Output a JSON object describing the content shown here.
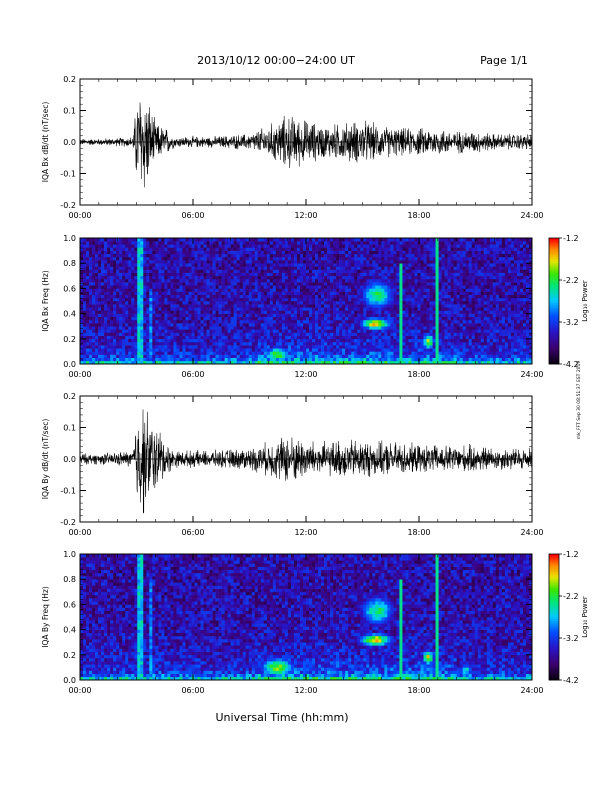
{
  "header": {
    "title": "2013/10/12  00:00−24:00 UT",
    "page": "Page 1/1"
  },
  "footer": {
    "xlabel": "Universal Time (hh:mm)",
    "side_note": "mk_FFT Sep 30 08:51:37 EST 2019"
  },
  "colorbar": {
    "label": "Log₁₀ Power",
    "ticks": [
      "-1.2",
      "-2.2",
      "-3.2",
      "-4.2"
    ],
    "range": [
      -4.2,
      -1.2
    ]
  },
  "chart_data": [
    {
      "type": "line",
      "ylabel": "IQA Bx dB/dt (nT/sec)",
      "x_ticks": [
        "00:00",
        "06:00",
        "12:00",
        "18:00",
        "24:00"
      ],
      "y_ticks": [
        "0.2",
        "0.1",
        "0.0",
        "-0.1",
        "-0.2"
      ],
      "xlim": [
        0,
        24
      ],
      "ylim": [
        -0.2,
        0.2
      ],
      "x_unit": "hours UT",
      "envelope": [
        [
          0,
          0.012
        ],
        [
          1,
          0.012
        ],
        [
          2,
          0.015
        ],
        [
          2.8,
          0.02
        ],
        [
          3.1,
          0.2
        ],
        [
          3.4,
          0.2
        ],
        [
          3.7,
          0.14
        ],
        [
          4.0,
          0.07
        ],
        [
          4.3,
          0.06
        ],
        [
          4.6,
          0.05
        ],
        [
          5,
          0.02
        ],
        [
          6,
          0.02
        ],
        [
          7,
          0.02
        ],
        [
          8,
          0.025
        ],
        [
          9,
          0.03
        ],
        [
          10,
          0.06
        ],
        [
          11,
          0.1
        ],
        [
          12,
          0.08
        ],
        [
          13,
          0.06
        ],
        [
          14,
          0.07
        ],
        [
          15,
          0.08
        ],
        [
          16,
          0.06
        ],
        [
          17,
          0.05
        ],
        [
          18,
          0.05
        ],
        [
          19,
          0.05
        ],
        [
          20,
          0.04
        ],
        [
          21,
          0.04
        ],
        [
          22,
          0.03
        ],
        [
          23,
          0.03
        ],
        [
          24,
          0.03
        ]
      ]
    },
    {
      "type": "heatmap",
      "ylabel": "IQA Bx Freq (Hz)",
      "x_ticks": [
        "00:00",
        "06:00",
        "12:00",
        "18:00",
        "24:00"
      ],
      "y_ticks": [
        "1.0",
        "0.8",
        "0.6",
        "0.4",
        "0.2",
        "0.0"
      ],
      "xlim": [
        0,
        24
      ],
      "ylim": [
        0.0,
        1.0
      ],
      "x_unit": "hours UT",
      "features": [
        {
          "type": "band",
          "t0": 3.0,
          "t1": 3.3,
          "f0": 0.0,
          "f1": 1.0,
          "level": 0.6
        },
        {
          "type": "band",
          "t0": 3.6,
          "t1": 3.8,
          "f0": 0.0,
          "f1": 0.6,
          "level": 0.5
        },
        {
          "type": "blob",
          "t": 15.7,
          "f": 0.32,
          "dt": 0.8,
          "df": 0.05,
          "level": 0.95
        },
        {
          "type": "blob",
          "t": 15.8,
          "f": 0.55,
          "dt": 0.9,
          "df": 0.12,
          "level": 0.7
        },
        {
          "type": "blob",
          "t": 18.5,
          "f": 0.18,
          "dt": 0.3,
          "df": 0.06,
          "level": 0.9
        },
        {
          "type": "blob",
          "t": 10.5,
          "f": 0.08,
          "dt": 0.7,
          "df": 0.06,
          "level": 0.8
        },
        {
          "type": "line",
          "t": 17.0,
          "f0": 0.0,
          "f1": 0.8,
          "level": 0.6
        },
        {
          "type": "line",
          "t": 19.0,
          "f0": 0.0,
          "f1": 1.0,
          "level": 0.6
        }
      ]
    },
    {
      "type": "line",
      "ylabel": "IQA By dB/dt (nT/sec)",
      "x_ticks": [
        "00:00",
        "06:00",
        "12:00",
        "18:00",
        "24:00"
      ],
      "y_ticks": [
        "0.2",
        "0.1",
        "0.0",
        "-0.1",
        "-0.2"
      ],
      "xlim": [
        0,
        24
      ],
      "ylim": [
        -0.2,
        0.2
      ],
      "x_unit": "hours UT",
      "envelope": [
        [
          0,
          0.02
        ],
        [
          1,
          0.02
        ],
        [
          2,
          0.025
        ],
        [
          2.8,
          0.03
        ],
        [
          3.1,
          0.2
        ],
        [
          3.4,
          0.2
        ],
        [
          3.7,
          0.16
        ],
        [
          4.0,
          0.12
        ],
        [
          4.3,
          0.1
        ],
        [
          4.6,
          0.06
        ],
        [
          5,
          0.03
        ],
        [
          6,
          0.03
        ],
        [
          7,
          0.03
        ],
        [
          8,
          0.035
        ],
        [
          9,
          0.04
        ],
        [
          10,
          0.06
        ],
        [
          11,
          0.09
        ],
        [
          12,
          0.07
        ],
        [
          13,
          0.06
        ],
        [
          14,
          0.07
        ],
        [
          15,
          0.07
        ],
        [
          16,
          0.06
        ],
        [
          17,
          0.06
        ],
        [
          18,
          0.05
        ],
        [
          19,
          0.05
        ],
        [
          20,
          0.05
        ],
        [
          21,
          0.05
        ],
        [
          22,
          0.04
        ],
        [
          23,
          0.04
        ],
        [
          24,
          0.04
        ]
      ]
    },
    {
      "type": "heatmap",
      "ylabel": "IQA By Freq (Hz)",
      "x_ticks": [
        "00:00",
        "06:00",
        "12:00",
        "18:00",
        "24:00"
      ],
      "y_ticks": [
        "1.0",
        "0.8",
        "0.6",
        "0.4",
        "0.2",
        "0.0"
      ],
      "xlim": [
        0,
        24
      ],
      "ylim": [
        0.0,
        1.0
      ],
      "x_unit": "hours UT",
      "features": [
        {
          "type": "band",
          "t0": 3.0,
          "t1": 3.3,
          "f0": 0.0,
          "f1": 1.0,
          "level": 0.6
        },
        {
          "type": "band",
          "t0": 3.6,
          "t1": 3.8,
          "f0": 0.0,
          "f1": 0.8,
          "level": 0.5
        },
        {
          "type": "blob",
          "t": 15.7,
          "f": 0.32,
          "dt": 0.9,
          "df": 0.05,
          "level": 0.95
        },
        {
          "type": "blob",
          "t": 15.8,
          "f": 0.55,
          "dt": 0.9,
          "df": 0.12,
          "level": 0.7
        },
        {
          "type": "blob",
          "t": 18.5,
          "f": 0.18,
          "dt": 0.3,
          "df": 0.06,
          "level": 0.9
        },
        {
          "type": "blob",
          "t": 10.5,
          "f": 0.1,
          "dt": 0.9,
          "df": 0.08,
          "level": 0.85
        },
        {
          "type": "blob",
          "t": 20.5,
          "f": 0.08,
          "dt": 0.4,
          "df": 0.05,
          "level": 0.6
        },
        {
          "type": "line",
          "t": 17.0,
          "f0": 0.0,
          "f1": 0.8,
          "level": 0.6
        },
        {
          "type": "line",
          "t": 19.0,
          "f0": 0.0,
          "f1": 1.0,
          "level": 0.6
        }
      ]
    }
  ]
}
